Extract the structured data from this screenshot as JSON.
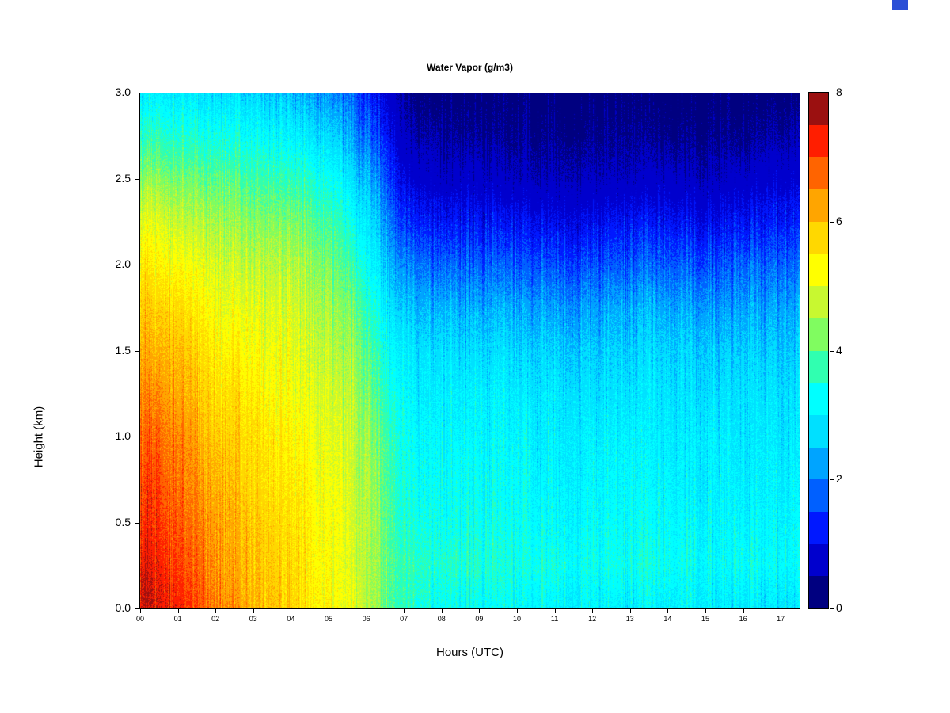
{
  "page": {
    "background": "#ffffff"
  },
  "decorations": {
    "top_right_swatch": {
      "color": "#2b4fd6"
    }
  },
  "chart_data": {
    "type": "heatmap",
    "title": "Water Vapor (g/m3)",
    "xlabel": "Hours (UTC)",
    "ylabel": "Height (km)",
    "units": "g/m3",
    "x_range_hours": [
      0,
      17.5
    ],
    "y_range_km": [
      0,
      3.0
    ],
    "x_tick_labels": [
      "00",
      "01",
      "02",
      "03",
      "04",
      "05",
      "06",
      "07",
      "08",
      "09",
      "10",
      "11",
      "12",
      "13",
      "14",
      "15",
      "16",
      "17"
    ],
    "y_tick_labels": [
      "0.0",
      "0.5",
      "1.0",
      "1.5",
      "2.0",
      "2.5",
      "3.0"
    ],
    "colorbar": {
      "range": [
        0,
        8
      ],
      "tick_labels": [
        "0",
        "2",
        "4",
        "6",
        "8"
      ],
      "band_size": 0.5,
      "band_colors": [
        "#000080",
        "#0000cd",
        "#0018ff",
        "#0060ff",
        "#00a4ff",
        "#00e0ff",
        "#00ffff",
        "#30ffb0",
        "#80fc60",
        "#c8f830",
        "#ffff00",
        "#ffd800",
        "#ffa500",
        "#ff6400",
        "#ff1e00",
        "#9b1010"
      ]
    },
    "x_hours": [
      0,
      1,
      2,
      3,
      4,
      5,
      6,
      7,
      8,
      9,
      10,
      11,
      12,
      13,
      14,
      15,
      16,
      17
    ],
    "y_heights_km": [
      0,
      0.25,
      0.5,
      0.75,
      1.0,
      1.25,
      1.5,
      1.75,
      2.0,
      2.25,
      2.5,
      2.75,
      3.0
    ],
    "values_by_hour": [
      [
        7.6,
        7.4,
        7.2,
        7.0,
        6.8,
        6.5,
        6.2,
        5.9,
        5.5,
        5.0,
        4.3,
        3.6,
        3.0
      ],
      [
        7.3,
        7.1,
        6.9,
        6.7,
        6.5,
        6.2,
        6.0,
        5.7,
        5.3,
        4.8,
        4.2,
        3.5,
        2.9
      ],
      [
        6.6,
        6.4,
        6.3,
        6.1,
        5.9,
        5.7,
        5.5,
        5.2,
        4.9,
        4.5,
        4.0,
        3.4,
        2.8
      ],
      [
        6.1,
        6.0,
        5.9,
        5.7,
        5.6,
        5.4,
        5.2,
        5.0,
        4.7,
        4.3,
        3.8,
        3.2,
        2.6
      ],
      [
        5.8,
        5.7,
        5.6,
        5.5,
        5.4,
        5.2,
        5.1,
        4.9,
        4.6,
        4.2,
        3.7,
        3.1,
        2.5
      ],
      [
        5.3,
        5.2,
        5.2,
        5.1,
        5.0,
        4.9,
        4.7,
        4.5,
        4.2,
        3.8,
        3.3,
        2.7,
        2.1
      ],
      [
        4.8,
        4.7,
        4.7,
        4.6,
        4.5,
        4.3,
        4.1,
        3.8,
        3.4,
        3.0,
        2.5,
        1.9,
        1.4
      ],
      [
        3.6,
        3.7,
        3.5,
        3.4,
        3.3,
        3.1,
        2.9,
        2.5,
        2.0,
        1.4,
        0.9,
        0.6,
        0.4
      ],
      [
        3.3,
        3.6,
        3.4,
        3.3,
        3.2,
        3.0,
        2.8,
        2.4,
        1.8,
        1.2,
        0.7,
        0.5,
        0.3
      ],
      [
        3.2,
        3.5,
        3.3,
        3.2,
        3.1,
        3.0,
        2.7,
        2.3,
        1.7,
        1.1,
        0.7,
        0.4,
        0.3
      ],
      [
        3.2,
        3.4,
        3.3,
        3.2,
        3.1,
        2.9,
        2.7,
        2.3,
        1.7,
        1.1,
        0.6,
        0.4,
        0.3
      ],
      [
        3.1,
        3.4,
        3.2,
        3.1,
        3.0,
        2.9,
        2.6,
        2.2,
        1.6,
        1.0,
        0.6,
        0.4,
        0.3
      ],
      [
        3.1,
        3.3,
        3.2,
        3.1,
        3.0,
        2.8,
        2.6,
        2.2,
        1.6,
        1.0,
        0.6,
        0.4,
        0.3
      ],
      [
        3.0,
        3.3,
        3.2,
        3.1,
        3.0,
        2.8,
        2.6,
        2.3,
        1.7,
        1.1,
        0.6,
        0.4,
        0.3
      ],
      [
        3.0,
        3.3,
        3.2,
        3.1,
        3.0,
        2.9,
        2.7,
        2.3,
        1.7,
        1.1,
        0.7,
        0.4,
        0.3
      ],
      [
        3.0,
        3.2,
        3.1,
        3.0,
        3.0,
        2.8,
        2.6,
        2.2,
        1.6,
        1.0,
        0.6,
        0.4,
        0.3
      ],
      [
        2.9,
        3.2,
        3.1,
        3.0,
        2.9,
        2.8,
        2.6,
        2.2,
        1.7,
        1.1,
        0.7,
        0.4,
        0.3
      ],
      [
        2.9,
        3.2,
        3.1,
        3.0,
        2.9,
        2.8,
        2.6,
        2.3,
        1.8,
        1.2,
        0.8,
        0.5,
        0.3
      ]
    ]
  }
}
